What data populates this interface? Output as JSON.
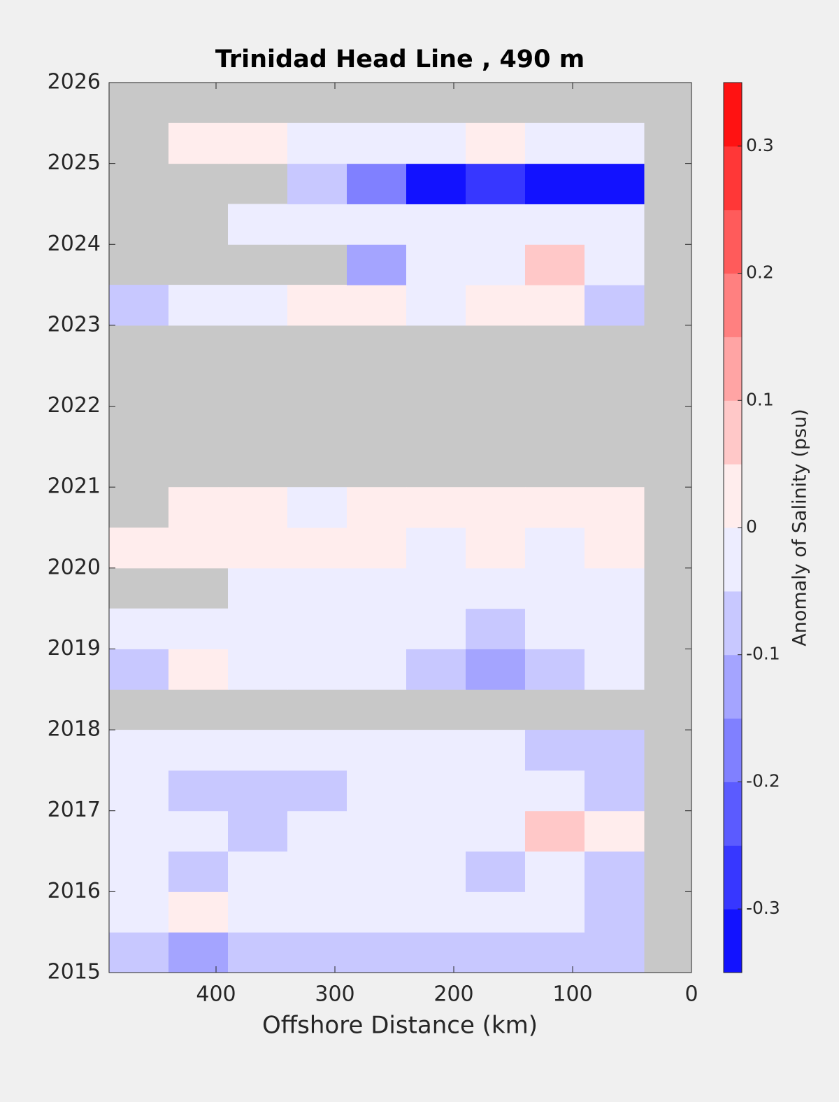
{
  "chart_data": {
    "type": "heatmap",
    "title": "Trinidad Head Line , 490 m",
    "xlabel": "Offshore Distance (km)",
    "colorbar_label": "Anomaly of Salinity (psu)",
    "x": [
      465,
      415,
      365,
      315,
      265,
      215,
      165,
      115,
      65
    ],
    "y": [
      2015.25,
      2015.75,
      2016.25,
      2016.75,
      2017.25,
      2017.75,
      2018.25,
      2018.75,
      2019.25,
      2019.75,
      2020.25,
      2020.75,
      2021.25,
      2021.75,
      2022.25,
      2022.75,
      2023.25,
      2023.75,
      2024.25,
      2024.75,
      2025.25
    ],
    "z": [
      [
        -0.05,
        -0.1,
        -0.08,
        -0.05,
        -0.05,
        -0.05,
        -0.05,
        -0.05,
        -0.08
      ],
      [
        0,
        0.03,
        0,
        0,
        0,
        0,
        0,
        -0.03,
        -0.05
      ],
      [
        -0.03,
        -0.05,
        -0.03,
        0,
        -0.03,
        -0.03,
        -0.05,
        -0.03,
        -0.05
      ],
      [
        -0.03,
        -0.03,
        -0.05,
        -0.03,
        -0.03,
        0,
        0,
        0.08,
        0.05
      ],
      [
        0,
        -0.05,
        -0.07,
        -0.05,
        -0.03,
        -0.03,
        -0.03,
        -0.03,
        -0.05
      ],
      [
        0,
        0,
        -0.03,
        0,
        0,
        0,
        0,
        -0.05,
        -0.05
      ],
      [
        null,
        null,
        null,
        null,
        null,
        null,
        null,
        null,
        null
      ],
      [
        -0.05,
        0.03,
        0,
        -0.03,
        -0.03,
        -0.05,
        -0.1,
        -0.05,
        -0.03
      ],
      [
        -0.03,
        -0.03,
        -0.03,
        0,
        -0.03,
        -0.03,
        -0.05,
        -0.03,
        -0.03
      ],
      [
        null,
        null,
        0,
        0,
        0,
        0,
        0,
        0,
        -0.03
      ],
      [
        0.03,
        0.03,
        0.03,
        0.03,
        0.03,
        0,
        0.03,
        0,
        0.03
      ],
      [
        null,
        0.03,
        0.03,
        0,
        0.03,
        0.03,
        0.03,
        0.03,
        0.03
      ],
      [
        null,
        null,
        null,
        null,
        null,
        null,
        null,
        null,
        null
      ],
      [
        null,
        null,
        null,
        null,
        null,
        null,
        null,
        null,
        null
      ],
      [
        null,
        null,
        null,
        null,
        null,
        null,
        null,
        null,
        null
      ],
      [
        null,
        null,
        null,
        null,
        null,
        null,
        null,
        null,
        null
      ],
      [
        -0.05,
        0,
        0,
        0.03,
        0.05,
        0,
        0.03,
        0.05,
        -0.05
      ],
      [
        null,
        null,
        null,
        null,
        -0.1,
        0,
        0,
        0.1,
        -0.03
      ],
      [
        null,
        null,
        0,
        0,
        -0.03,
        0,
        0,
        -0.03,
        -0.03
      ],
      [
        null,
        null,
        null,
        -0.05,
        -0.15,
        -0.3,
        -0.28,
        -0.3,
        -0.3
      ],
      [
        null,
        0.03,
        0.03,
        0,
        -0.03,
        0,
        0.03,
        0,
        0
      ]
    ],
    "xlim": [
      490,
      0
    ],
    "xticks": [
      400,
      300,
      200,
      100,
      0
    ],
    "ylim": [
      2015,
      2026
    ],
    "yticks": [
      2015,
      2016,
      2017,
      2018,
      2019,
      2020,
      2021,
      2022,
      2023,
      2024,
      2025,
      2026
    ],
    "clim": [
      -0.35,
      0.35
    ],
    "clevels": [
      -0.35,
      -0.3,
      -0.25,
      -0.2,
      -0.15,
      -0.1,
      -0.05,
      0,
      0.05,
      0.1,
      0.15,
      0.2,
      0.25,
      0.3,
      0.35
    ],
    "cticks": [
      -0.3,
      -0.2,
      -0.1,
      0,
      0.1,
      0.2,
      0.3
    ],
    "colormap": [
      "#0000ff",
      "#ffffff",
      "#ff0000"
    ],
    "missing_color": "#c8c8c8"
  }
}
